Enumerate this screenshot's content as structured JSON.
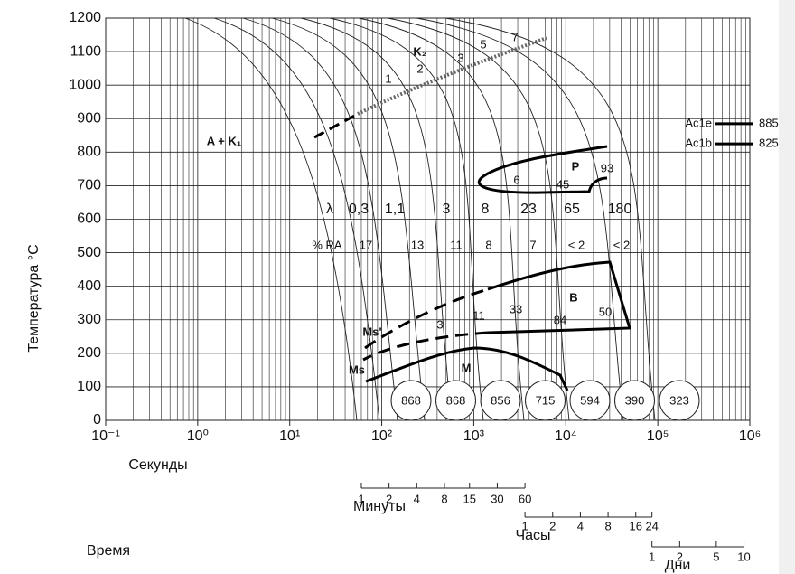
{
  "chart_data": {
    "type": "cct",
    "y_label": "Температура °C",
    "x_label": "Время",
    "log_x": true,
    "grid": true,
    "xlim": [
      0.1,
      1000000
    ],
    "xticks": [
      {
        "value": 0.1,
        "label": "10⁻¹"
      },
      {
        "value": 1,
        "label": "10⁰"
      },
      {
        "value": 10,
        "label": "10¹"
      },
      {
        "value": 100,
        "label": "10²"
      },
      {
        "value": 1000,
        "label": "10³"
      },
      {
        "value": 10000,
        "label": "10⁴"
      },
      {
        "value": 100000,
        "label": "10⁵"
      },
      {
        "value": 1000000,
        "label": "10⁶"
      }
    ],
    "ylim": [
      0,
      1200
    ],
    "yticks": [
      0,
      100,
      200,
      300,
      400,
      500,
      600,
      700,
      800,
      900,
      1000,
      1100,
      1200
    ],
    "time_scales": [
      {
        "name": "Секунды"
      },
      {
        "name": "Минуты",
        "ticks": [
          1,
          2,
          4,
          8,
          15,
          30,
          60
        ]
      },
      {
        "name": "Часы",
        "ticks": [
          1,
          2,
          4,
          8,
          16,
          24
        ]
      },
      {
        "name": "Дни",
        "ticks": [
          1,
          2,
          5,
          10
        ]
      }
    ],
    "ac_lines": [
      {
        "name": "Ac1e",
        "value": 885
      },
      {
        "name": "Ac1b",
        "value": 825
      }
    ],
    "phase_labels": [
      "A + K₁",
      "K₂",
      "P",
      "B",
      "M",
      "Ms",
      "Ms'"
    ],
    "lambda_label": "λ",
    "lambda_values": [
      "0,3",
      "1,1",
      "3",
      "8",
      "23",
      "65",
      "180"
    ],
    "ra_label": "% RA",
    "ra_values": [
      17,
      13,
      11,
      8,
      7,
      "< 2",
      "< 2"
    ],
    "hardness": [
      868,
      868,
      856,
      715,
      594,
      390,
      323
    ],
    "k2_curve_numbers": [
      1,
      2,
      3,
      5,
      7
    ],
    "p_numbers": [
      6,
      45,
      93
    ],
    "b_numbers": [
      3,
      11,
      33,
      84,
      50
    ]
  }
}
